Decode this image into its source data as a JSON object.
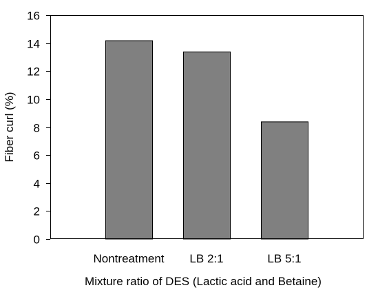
{
  "chart_data": {
    "type": "bar",
    "categories": [
      "Nontreatment",
      "LB 2:1",
      "LB 5:1"
    ],
    "values": [
      14.2,
      13.4,
      8.4
    ],
    "xlabel": "Mixture ratio of DES (Lactic acid and Betaine)",
    "ylabel": "Fiber curl (%)",
    "ylim": [
      0,
      16
    ],
    "yticks": [
      0,
      2,
      4,
      6,
      8,
      10,
      12,
      14,
      16
    ],
    "grid": false,
    "bar_color": "#808080",
    "bar_edge_color": "#000000"
  }
}
